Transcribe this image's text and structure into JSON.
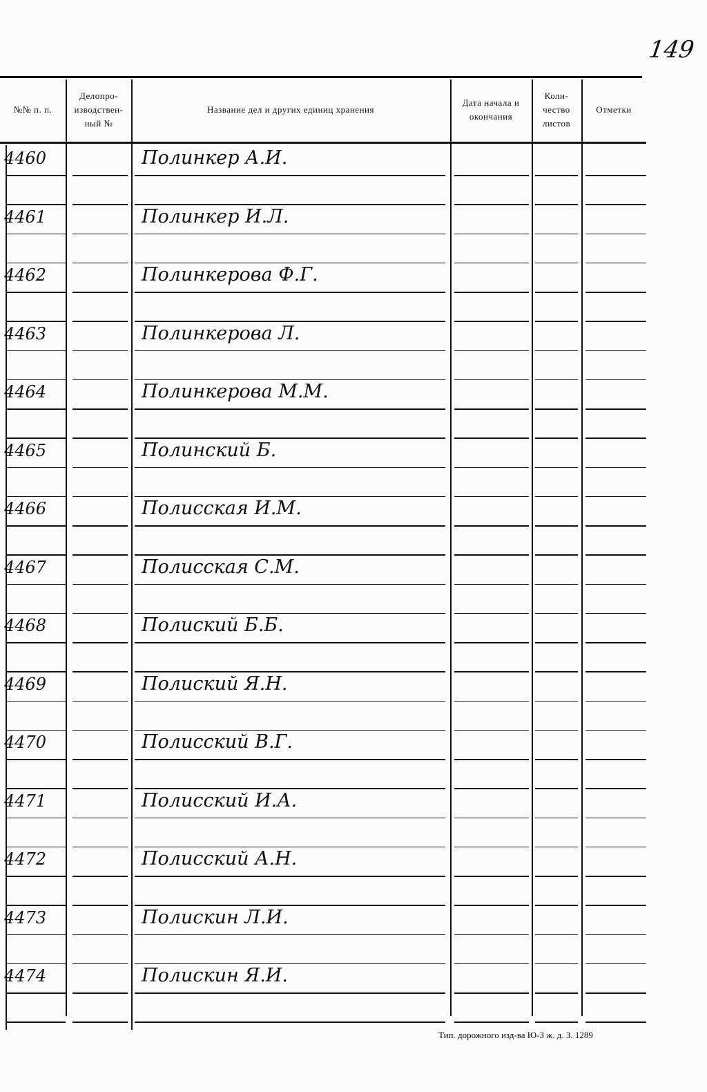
{
  "page_number": "149",
  "table": {
    "headers": [
      "№№ п. п.",
      "Делопро-изводствен-ный №",
      "Название дел и других единиц хранения",
      "Дата начала и окончания",
      "Коли-чество листов",
      "Отметки"
    ],
    "rows": [
      {
        "num": "4460",
        "name": "Полинкер А.И."
      },
      {
        "num": "4461",
        "name": "Полинкер И.Л."
      },
      {
        "num": "4462",
        "name": "Полинкерова Ф.Г."
      },
      {
        "num": "4463",
        "name": "Полинкерова Л."
      },
      {
        "num": "4464",
        "name": "Полинкерова М.М."
      },
      {
        "num": "4465",
        "name": "Полинский Б."
      },
      {
        "num": "4466",
        "name": "Полисская И.М."
      },
      {
        "num": "4467",
        "name": "Полисская С.М."
      },
      {
        "num": "4468",
        "name": "Полиский Б.Б."
      },
      {
        "num": "4469",
        "name": "Полиский Я.Н."
      },
      {
        "num": "4470",
        "name": "Полисский В.Г."
      },
      {
        "num": "4471",
        "name": "Полисский И.А."
      },
      {
        "num": "4472",
        "name": "Полисский А.Н."
      },
      {
        "num": "4473",
        "name": "Полискин Л.И."
      },
      {
        "num": "4474",
        "name": "Полискин Я.И."
      }
    ]
  },
  "footer": "Тип. дорожного изд-ва Ю-З ж. д. З. 1289"
}
